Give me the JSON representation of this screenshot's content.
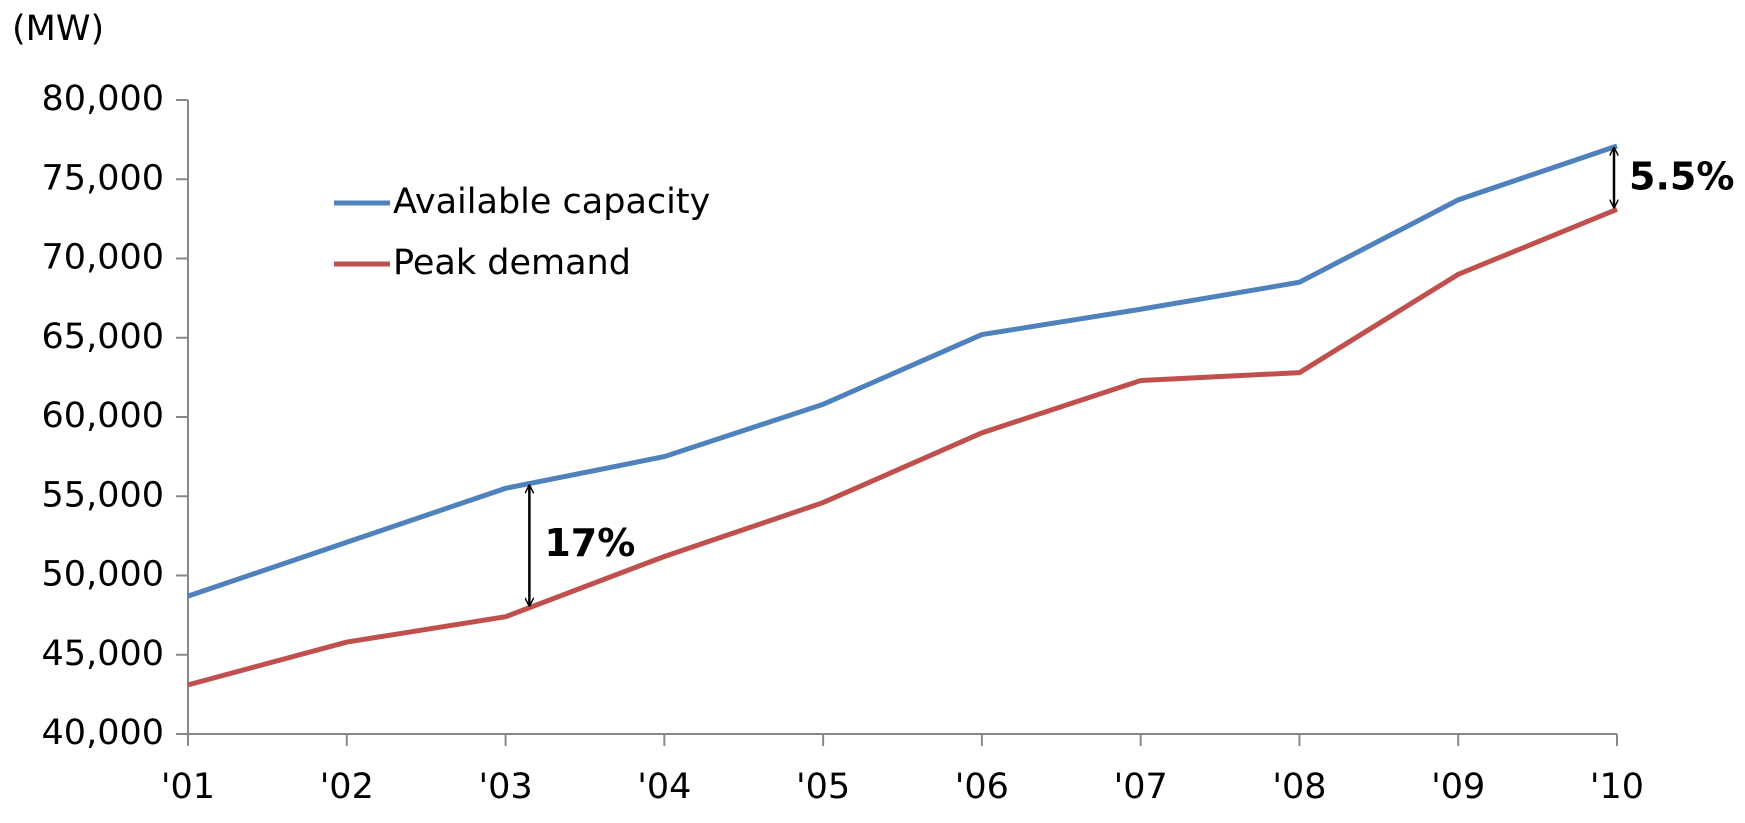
{
  "chart_data": {
    "type": "line",
    "y_label": "(MW)",
    "categories": [
      "'01",
      "'02",
      "'03",
      "'04",
      "'05",
      "'06",
      "'07",
      "'08",
      "'09",
      "'10"
    ],
    "series": [
      {
        "name": "Available capacity",
        "color": "#4f81bd",
        "values": [
          48700,
          52100,
          55500,
          57500,
          60800,
          65200,
          66800,
          68500,
          73700,
          77100
        ]
      },
      {
        "name": "Peak demand",
        "color": "#c0504d",
        "values": [
          43100,
          45800,
          47400,
          51200,
          54600,
          59000,
          62300,
          62800,
          69000,
          73100
        ]
      }
    ],
    "annotations": [
      "17%",
      "5.5%"
    ],
    "ylim": [
      40000,
      80000
    ],
    "yticks": [
      {
        "value": 40000,
        "label": "40,000"
      },
      {
        "value": 45000,
        "label": "45,000"
      },
      {
        "value": 50000,
        "label": "50,000"
      },
      {
        "value": 55000,
        "label": "55,000"
      },
      {
        "value": 60000,
        "label": "60,000"
      },
      {
        "value": 65000,
        "label": "65,000"
      },
      {
        "value": 70000,
        "label": "70,000"
      },
      {
        "value": 75000,
        "label": "75,000"
      },
      {
        "value": 80000,
        "label": "80,000"
      }
    ],
    "grid": false,
    "legend": "upper left"
  }
}
